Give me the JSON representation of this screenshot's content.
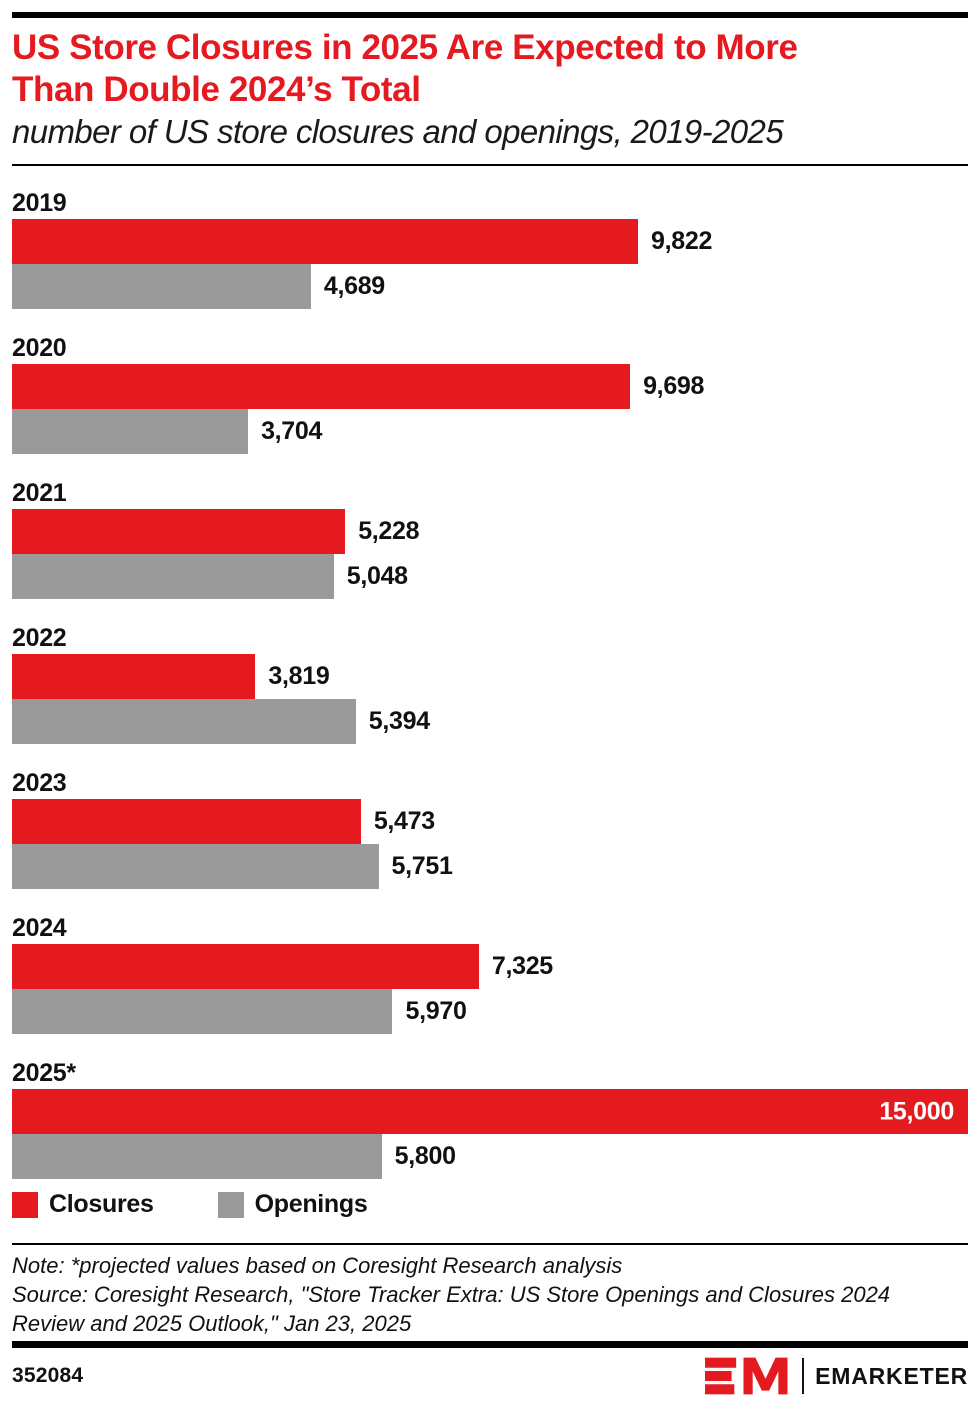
{
  "header": {
    "title_lines": [
      "US Store Closures in 2025 Are Expected to More",
      "Than Double 2024’s Total"
    ],
    "title_color": "#E41A20",
    "subtitle": "number of US store closures and openings, 2019-2025"
  },
  "chart_data": {
    "type": "bar",
    "orientation": "horizontal",
    "categories": [
      "2019",
      "2020",
      "2021",
      "2022",
      "2023",
      "2024",
      "2025*"
    ],
    "series": [
      {
        "name": "Closures",
        "color": "#E41A20",
        "values": [
          9822,
          9698,
          5228,
          3819,
          5473,
          7325,
          15000
        ]
      },
      {
        "name": "Openings",
        "color": "#9A9A9A",
        "values": [
          4689,
          3704,
          5048,
          5394,
          5751,
          5970,
          5800
        ]
      }
    ],
    "xlim": [
      0,
      15000
    ],
    "grid": false,
    "value_labels": true,
    "legend_position": "bottom"
  },
  "legend": {
    "items": [
      {
        "label": "Closures",
        "color": "#E41A20"
      },
      {
        "label": "Openings",
        "color": "#9A9A9A"
      }
    ]
  },
  "notes": {
    "note": "Note: *projected values based on Coresight Research analysis",
    "source": "Source: Coresight Research, \"Store Tracker Extra: US Store Openings and Closures 2024 Review and 2025 Outlook,\" Jan 23, 2025"
  },
  "footer": {
    "chart_id": "352084",
    "brand": "EMARKETER"
  }
}
